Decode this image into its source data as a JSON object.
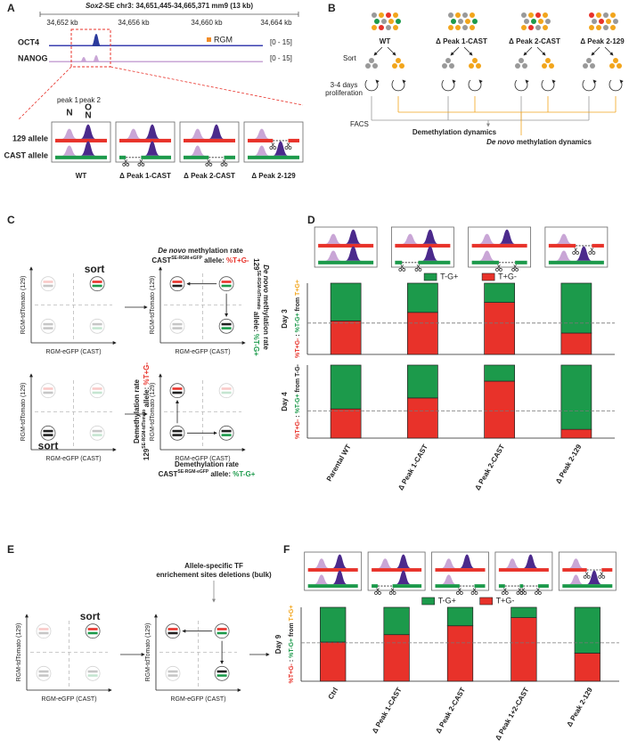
{
  "panel_labels": {
    "a": "A",
    "b": "B",
    "c": "C",
    "d": "D",
    "e": "E",
    "f": "F"
  },
  "panel_a": {
    "locus_gene": "Sox2",
    "locus_text": "-SE chr3: 34,651,445-34,665,371 mm9 (13 kb)",
    "coordinates": [
      "34,652 kb",
      "34,656 kb",
      "34,660 kb",
      "34,664 kb"
    ],
    "tracks": [
      {
        "name": "OCT4",
        "range": "[0 - 15]"
      },
      {
        "name": "NANOG",
        "range": "[0 - 15]"
      }
    ],
    "reporter": "RGM",
    "peaks": [
      "peak 1",
      "peak 2"
    ],
    "motif_peak1": "N",
    "motif_peak2": [
      "O",
      "N"
    ],
    "alleles": [
      "129 allele",
      "CAST allele"
    ],
    "constructs": [
      "WT",
      "Δ Peak 1-CAST",
      "Δ Peak 2-CAST",
      "Δ Peak 2-129"
    ]
  },
  "panel_b": {
    "populations": [
      "WT",
      "Δ Peak 1-CAST",
      "Δ Peak 2-CAST",
      "Δ Peak 2-129"
    ],
    "sort": "Sort",
    "proliferation": [
      "3-4 days",
      "proliferation"
    ],
    "facs": "FACS",
    "demethylation": "Demethylation dynamics",
    "de_novo": [
      "De novo",
      " methylation dynamics"
    ]
  },
  "panel_c": {
    "y_axis": "RGM-tdTomato (129)",
    "x_axis": "RGM-eGFP (CAST)",
    "sort": "sort",
    "rates": [
      {
        "lead": [
          "De novo",
          " methylation rate"
        ],
        "allele": "CAST",
        "superscript": "SE-RGM-eGFP",
        "suffix": " allele: ",
        "rate": "%T+G-"
      },
      {
        "lead": [
          "De novo",
          " methylation rate"
        ],
        "allele": "129",
        "superscript": "SE-RGM-tdTomato",
        "suffix": " allele: ",
        "rate": "%T-G+"
      },
      {
        "lead": [
          "Demethylation rate"
        ],
        "allele": "129",
        "superscript": "SE-RGM-tdTomato",
        "suffix": " allele: ",
        "rate": "%T+G-"
      },
      {
        "lead": [
          "Demethylation rate"
        ],
        "allele": "CAST",
        "superscript": "SE-RGM-eGFP",
        "suffix": " allele: ",
        "rate": "%T-G+"
      }
    ]
  },
  "panel_e": {
    "title": [
      "Allele-specific TF",
      "enrichement sites deletions (bulk)"
    ],
    "y_axis": "RGM-tdTomato (129)",
    "x_axis": "RGM-eGFP (CAST)",
    "sort": "sort"
  },
  "chart_data": [
    {
      "type": "stacked_bar",
      "day": "Day 3",
      "ylabel": [
        "%T+G-",
        " : ",
        "%T-G+",
        " from ",
        "T+G+"
      ],
      "ylabel_colors": [
        "#e8322a",
        "#222",
        "#1c9a4b",
        "#222",
        "#f2a51c"
      ],
      "series": [
        {
          "name": "T+G-",
          "color": "#e8322a",
          "values": [
            0.47,
            0.59,
            0.73,
            0.3
          ]
        },
        {
          "name": "T-G+",
          "color": "#1c9a4b",
          "values": [
            0.53,
            0.41,
            0.27,
            0.7
          ]
        }
      ],
      "ylim": [
        0,
        1
      ],
      "reference_line": 0.44,
      "legend": true
    },
    {
      "type": "stacked_bar",
      "day": "Day 4",
      "ylabel": [
        "%T+G-",
        " : ",
        "%T-G+",
        " from ",
        "T-G-"
      ],
      "ylabel_colors": [
        "#e8322a",
        "#222",
        "#1c9a4b",
        "#222",
        "#222"
      ],
      "categories": [
        "Parental WT",
        "Δ Peak 1-CAST",
        "Δ Peak 2-CAST",
        "Δ Peak 2-129"
      ],
      "category_colors": [
        "#111",
        "#1c9a4b",
        "#1c9a4b",
        "#e8322a"
      ],
      "series": [
        {
          "color": "#e8322a",
          "values": [
            0.4,
            0.55,
            0.78,
            0.12
          ]
        },
        {
          "color": "#1c9a4b",
          "values": [
            0.6,
            0.45,
            0.22,
            0.88
          ]
        }
      ],
      "ylim": [
        0,
        1
      ],
      "reference_line": 0.37,
      "legend": false
    },
    {
      "type": "stacked_bar",
      "day": "Day 9",
      "ylabel": [
        "%T+G-",
        " : ",
        "%T-G+",
        " from ",
        "T+G+"
      ],
      "ylabel_colors": [
        "#e8322a",
        "#222",
        "#1c9a4b",
        "#222",
        "#f2a51c"
      ],
      "categories": [
        "Ctrl",
        "Δ Peak 1-CAST",
        "Δ Peak 2-CAST",
        "Δ Peak 1+2-CAST",
        "Δ Peak 2-129"
      ],
      "category_colors": [
        "#111",
        "#1c9a4b",
        "#1c9a4b",
        "#1c9a4b",
        "#e8322a"
      ],
      "series": [
        {
          "name": "T+G-",
          "color": "#e8322a",
          "values": [
            0.53,
            0.63,
            0.75,
            0.86,
            0.38
          ]
        },
        {
          "name": "T-G+",
          "color": "#1c9a4b",
          "values": [
            0.47,
            0.37,
            0.25,
            0.14,
            0.62
          ]
        }
      ],
      "ylim": [
        0,
        1
      ],
      "reference_line": 0.52,
      "legend": true
    }
  ]
}
